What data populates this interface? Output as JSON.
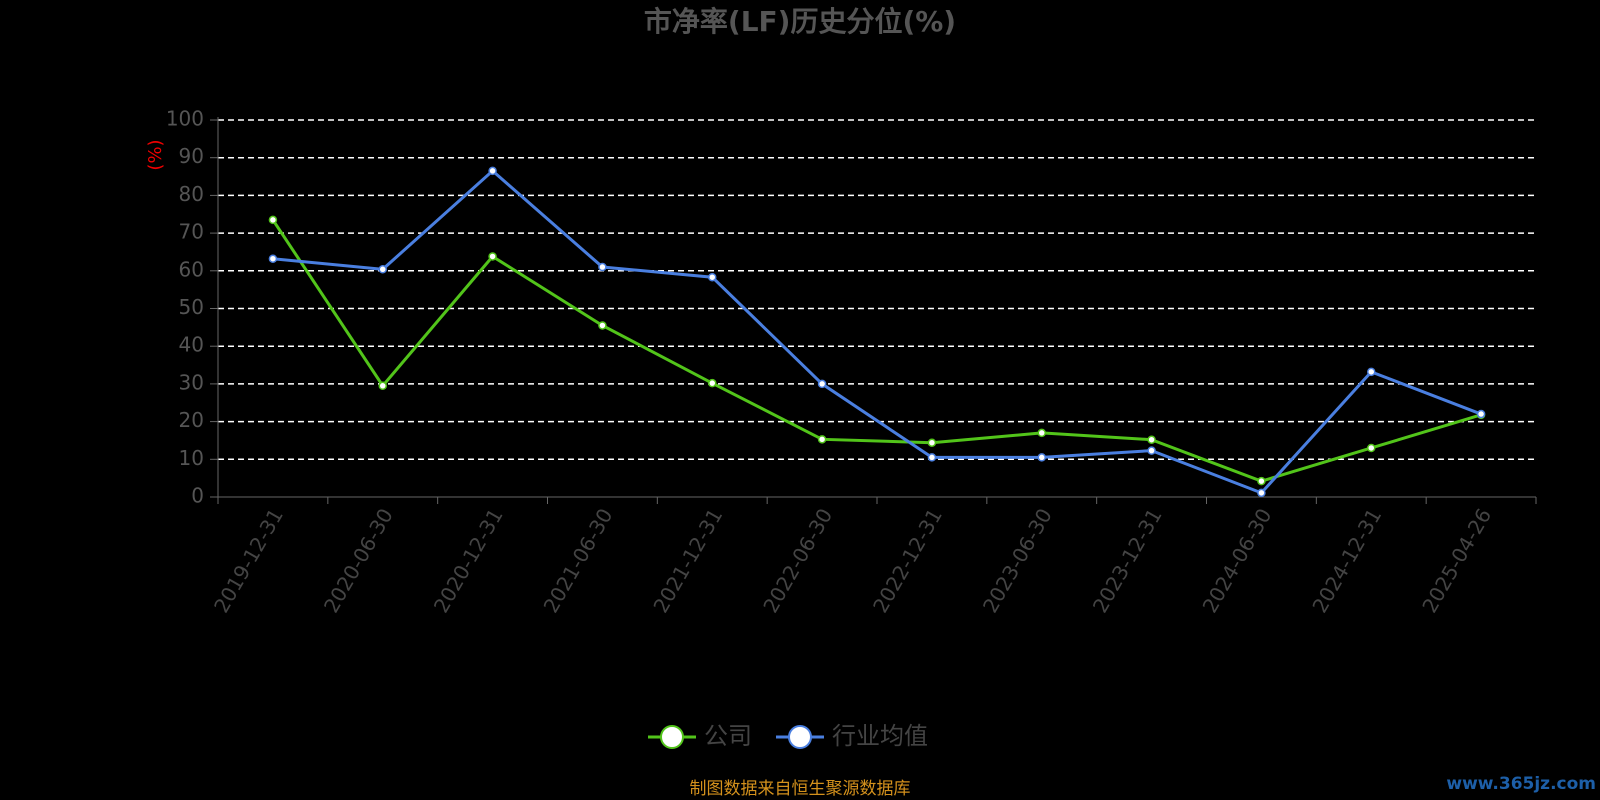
{
  "chart_data": {
    "type": "line",
    "title": "市净率(LF)历史分位(%)",
    "y_label": "(%)",
    "categories": [
      "2019-12-31",
      "2020-06-30",
      "2020-12-31",
      "2021-06-30",
      "2021-12-31",
      "2022-06-30",
      "2022-12-31",
      "2023-06-30",
      "2023-12-31",
      "2024-06-30",
      "2024-12-31",
      "2025-04-26"
    ],
    "series": [
      {
        "name": "公司",
        "color": "#52c41a",
        "values": [
          73.5,
          29.5,
          63.8,
          45.5,
          30.2,
          15.3,
          14.4,
          17.0,
          15.2,
          4.2,
          13.0,
          21.8
        ]
      },
      {
        "name": "行业均值",
        "color": "#4a7fe0",
        "values": [
          63.2,
          60.4,
          86.5,
          61.0,
          58.3,
          30.0,
          10.5,
          10.5,
          12.3,
          1.1,
          33.2,
          22.0
        ]
      }
    ],
    "ylim": [
      0,
      100
    ],
    "yticks": [
      0,
      10,
      20,
      30,
      40,
      50,
      60,
      70,
      80,
      90,
      100
    ],
    "grid": true,
    "legend": "bottom",
    "source": "制图数据来自恒生聚源数据库",
    "watermark": "www.365jz.com"
  }
}
